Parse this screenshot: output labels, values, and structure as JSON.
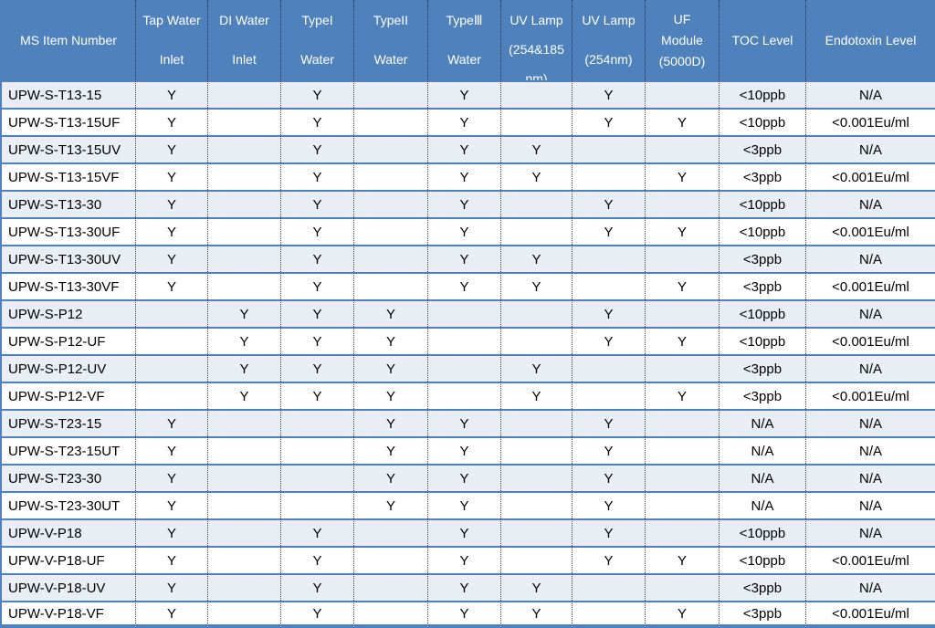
{
  "colors": {
    "accent_blue": "#4f81bd",
    "row_alt_bg": "#e9edf4",
    "header_text": "#ffffff",
    "body_text": "#000000"
  },
  "table": {
    "headers": {
      "item": "MS Item Number",
      "tap_water": [
        "Tap Water",
        "Inlet"
      ],
      "di_water": [
        "DI Water",
        "Inlet"
      ],
      "type1": [
        "TypeI",
        "Water"
      ],
      "type2": [
        "TypeII",
        "Water"
      ],
      "type3": [
        "TypeⅢ",
        "Water"
      ],
      "uv_lamp_254_185": [
        "UV Lamp",
        "(254&185",
        "nm)"
      ],
      "uv_lamp_254": [
        "UV Lamp",
        "(254nm)"
      ],
      "uf_module": [
        "UF",
        "Module",
        "(5000D)"
      ],
      "toc": "TOC Level",
      "endotoxin": "Endotoxin Level"
    },
    "flag_columns": [
      "tap_water_inlet",
      "di_water_inlet",
      "type1_water",
      "type2_water",
      "type3_water",
      "uv_lamp_254_185nm",
      "uv_lamp_254nm",
      "uf_module_5000d"
    ],
    "rows": [
      {
        "item": "UPW-S-T13-15",
        "flags": [
          "Y",
          "",
          "Y",
          "",
          "Y",
          "",
          "Y",
          ""
        ],
        "toc": "<10ppb",
        "endotoxin": "N/A"
      },
      {
        "item": "UPW-S-T13-15UF",
        "flags": [
          "Y",
          "",
          "Y",
          "",
          "Y",
          "",
          "Y",
          "Y"
        ],
        "toc": "<10ppb",
        "endotoxin": "<0.001Eu/ml"
      },
      {
        "item": "UPW-S-T13-15UV",
        "flags": [
          "Y",
          "",
          "Y",
          "",
          "Y",
          "Y",
          "",
          ""
        ],
        "toc": "<3ppb",
        "endotoxin": "N/A"
      },
      {
        "item": "UPW-S-T13-15VF",
        "flags": [
          "Y",
          "",
          "Y",
          "",
          "Y",
          "Y",
          "",
          "Y"
        ],
        "toc": "<3ppb",
        "endotoxin": "<0.001Eu/ml"
      },
      {
        "item": "UPW-S-T13-30",
        "flags": [
          "Y",
          "",
          "Y",
          "",
          "Y",
          "",
          "Y",
          ""
        ],
        "toc": "<10ppb",
        "endotoxin": "N/A"
      },
      {
        "item": "UPW-S-T13-30UF",
        "flags": [
          "Y",
          "",
          "Y",
          "",
          "Y",
          "",
          "Y",
          "Y"
        ],
        "toc": "<10ppb",
        "endotoxin": "<0.001Eu/ml"
      },
      {
        "item": "UPW-S-T13-30UV",
        "flags": [
          "Y",
          "",
          "Y",
          "",
          "Y",
          "Y",
          "",
          ""
        ],
        "toc": "<3ppb",
        "endotoxin": "N/A"
      },
      {
        "item": "UPW-S-T13-30VF",
        "flags": [
          "Y",
          "",
          "Y",
          "",
          "Y",
          "Y",
          "",
          "Y"
        ],
        "toc": "<3ppb",
        "endotoxin": "<0.001Eu/ml"
      },
      {
        "item": "UPW-S-P12",
        "flags": [
          "",
          "Y",
          "Y",
          "Y",
          "",
          "",
          "Y",
          ""
        ],
        "toc": "<10ppb",
        "endotoxin": "N/A"
      },
      {
        "item": "UPW-S-P12-UF",
        "flags": [
          "",
          "Y",
          "Y",
          "Y",
          "",
          "",
          "Y",
          "Y"
        ],
        "toc": "<10ppb",
        "endotoxin": "<0.001Eu/ml"
      },
      {
        "item": "UPW-S-P12-UV",
        "flags": [
          "",
          "Y",
          "Y",
          "Y",
          "",
          "Y",
          "",
          ""
        ],
        "toc": "<3ppb",
        "endotoxin": "N/A"
      },
      {
        "item": "UPW-S-P12-VF",
        "flags": [
          "",
          "Y",
          "Y",
          "Y",
          "",
          "Y",
          "",
          "Y"
        ],
        "toc": "<3ppb",
        "endotoxin": "<0.001Eu/ml"
      },
      {
        "item": "UPW-S-T23-15",
        "flags": [
          "Y",
          "",
          "",
          "Y",
          "Y",
          "",
          "Y",
          ""
        ],
        "toc": "N/A",
        "endotoxin": "N/A"
      },
      {
        "item": "UPW-S-T23-15UT",
        "flags": [
          "Y",
          "",
          "",
          "Y",
          "Y",
          "",
          "Y",
          ""
        ],
        "toc": "N/A",
        "endotoxin": "N/A"
      },
      {
        "item": "UPW-S-T23-30",
        "flags": [
          "Y",
          "",
          "",
          "Y",
          "Y",
          "",
          "Y",
          ""
        ],
        "toc": "N/A",
        "endotoxin": "N/A"
      },
      {
        "item": "UPW-S-T23-30UT",
        "flags": [
          "Y",
          "",
          "",
          "Y",
          "Y",
          "",
          "Y",
          ""
        ],
        "toc": "N/A",
        "endotoxin": "N/A"
      },
      {
        "item": "UPW-V-P18",
        "flags": [
          "Y",
          "",
          "Y",
          "",
          "Y",
          "",
          "Y",
          ""
        ],
        "toc": "<10ppb",
        "endotoxin": "N/A"
      },
      {
        "item": "UPW-V-P18-UF",
        "flags": [
          "Y",
          "",
          "Y",
          "",
          "Y",
          "",
          "Y",
          "Y"
        ],
        "toc": "<10ppb",
        "endotoxin": "<0.001Eu/ml"
      },
      {
        "item": "UPW-V-P18-UV",
        "flags": [
          "Y",
          "",
          "Y",
          "",
          "Y",
          "Y",
          "",
          ""
        ],
        "toc": "<3ppb",
        "endotoxin": "N/A"
      },
      {
        "item": "UPW-V-P18-VF",
        "flags": [
          "Y",
          "",
          "Y",
          "",
          "Y",
          "Y",
          "",
          "Y"
        ],
        "toc": "<3ppb",
        "endotoxin": "<0.001Eu/ml"
      }
    ]
  }
}
